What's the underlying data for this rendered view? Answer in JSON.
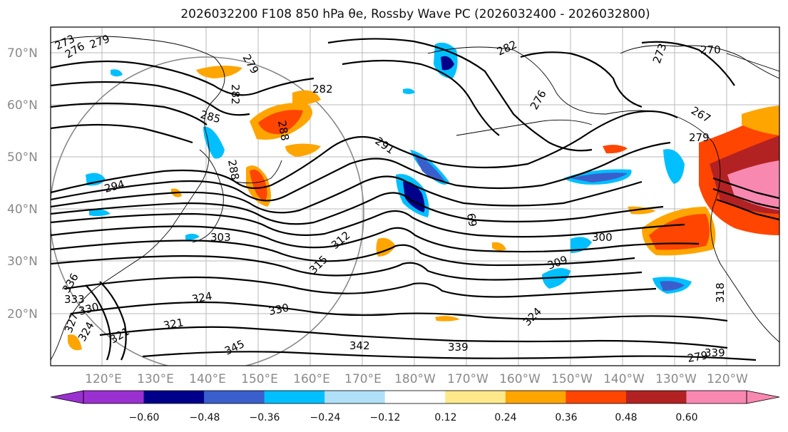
{
  "title": "2026032200 F108 850 hPa θe, Rossby Wave PC (2026032400 - 2026032800)",
  "map": {
    "lat_labels": [
      "70°N",
      "60°N",
      "50°N",
      "40°N",
      "30°N",
      "20°N"
    ],
    "lon_labels": [
      "120°E",
      "130°E",
      "140°E",
      "150°E",
      "160°E",
      "170°E",
      "180°W",
      "170°W",
      "160°W",
      "150°W",
      "140°W",
      "130°W",
      "120°W"
    ],
    "contour_labels": [
      "273",
      "276",
      "279",
      "279",
      "282",
      "282",
      "282",
      "276",
      "273",
      "270",
      "267",
      "279",
      "285",
      "288",
      "288",
      "291",
      "294",
      "303",
      "309",
      "300",
      "315",
      "312",
      "318",
      "324",
      "321",
      "330",
      "324",
      "345",
      "342",
      "339",
      "339",
      "336",
      "333",
      "330",
      "327",
      "324",
      "321",
      "69",
      "279"
    ]
  },
  "colorbar": {
    "ticks": [
      "−0.60",
      "−0.48",
      "−0.36",
      "−0.24",
      "−0.12",
      "0.12",
      "0.24",
      "0.36",
      "0.48",
      "0.60"
    ],
    "colors": [
      "#9b30d0",
      "#00008b",
      "#3a5fcd",
      "#00bfff",
      "#b0e0f8",
      "#ffffff",
      "#fee98a",
      "#ffa500",
      "#ff4500",
      "#b22222",
      "#f888b0"
    ]
  }
}
